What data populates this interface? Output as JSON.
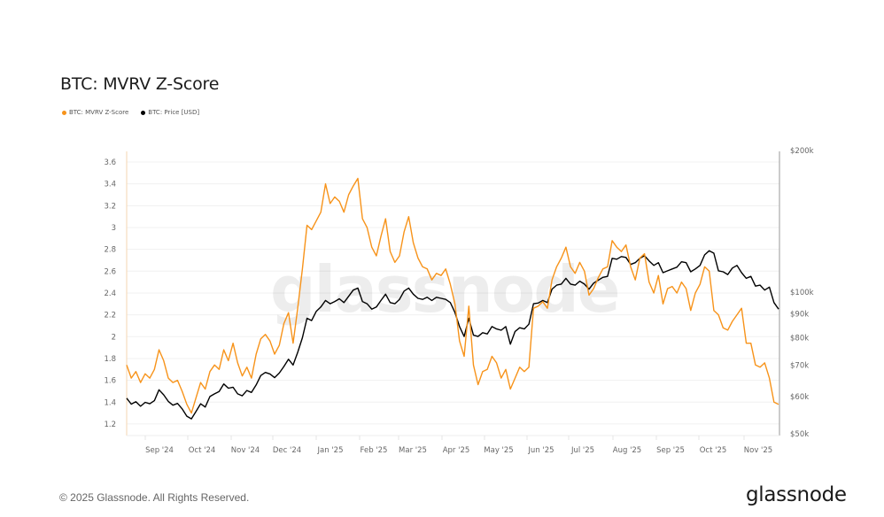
{
  "title": "BTC: MVRV Z-Score",
  "legend": [
    {
      "label": "BTC: MVRV Z-Score",
      "color": "#F7931A"
    },
    {
      "label": "BTC: Price [USD]",
      "color": "#000000"
    }
  ],
  "footer": {
    "copyright": "© 2025 Glassnode. All Rights Reserved.",
    "logo": "glassnode"
  },
  "watermark": "glassnode",
  "chart_data": {
    "type": "line",
    "title": "BTC: MVRV Z-Score",
    "xlabel": "",
    "ylabel_left": "MVRV Z-Score",
    "ylabel_right": "Price [USD]",
    "left_axis": {
      "ticks": [
        "1.2",
        "1.4",
        "1.6",
        "1.8",
        "2",
        "2.2",
        "2.4",
        "2.6",
        "2.8",
        "3",
        "3.2",
        "3.4",
        "3.6"
      ],
      "range": [
        1.15,
        3.7
      ]
    },
    "right_axis": {
      "scale": "log",
      "ticks": [
        "$50k",
        "$60k",
        "$70k",
        "$80k",
        "$90k",
        "$100k",
        "$200k"
      ],
      "range": [
        50000,
        200000
      ]
    },
    "x_ticks": [
      "Sep '24",
      "Oct '24",
      "Nov '24",
      "Dec '24",
      "Jan '25",
      "Feb '25",
      "Mar '25",
      "Apr '25",
      "May '25",
      "Jun '25",
      "Jul '25",
      "Aug '25",
      "Sep '25",
      "Oct '25",
      "Nov '25"
    ],
    "grid": true,
    "legend_position": "top-left",
    "series": [
      {
        "name": "BTC: MVRV Z-Score",
        "color": "#F7931A",
        "axis": "left",
        "values": [
          1.74,
          1.62,
          1.68,
          1.58,
          1.66,
          1.62,
          1.7,
          1.88,
          1.78,
          1.62,
          1.58,
          1.6,
          1.5,
          1.38,
          1.3,
          1.44,
          1.58,
          1.52,
          1.68,
          1.74,
          1.7,
          1.88,
          1.78,
          1.94,
          1.76,
          1.64,
          1.72,
          1.62,
          1.84,
          1.98,
          2.02,
          1.96,
          1.84,
          1.92,
          2.12,
          2.22,
          1.94,
          2.26,
          2.62,
          3.02,
          2.98,
          3.06,
          3.14,
          3.4,
          3.22,
          3.28,
          3.24,
          3.14,
          3.3,
          3.38,
          3.45,
          3.08,
          3.0,
          2.82,
          2.74,
          2.92,
          3.08,
          2.78,
          2.68,
          2.74,
          2.96,
          3.1,
          2.86,
          2.72,
          2.64,
          2.62,
          2.52,
          2.58,
          2.56,
          2.62,
          2.48,
          2.3,
          1.96,
          1.82,
          2.28,
          1.74,
          1.56,
          1.68,
          1.7,
          1.82,
          1.76,
          1.62,
          1.7,
          1.52,
          1.62,
          1.72,
          1.68,
          1.72,
          2.26,
          2.28,
          2.32,
          2.26,
          2.52,
          2.64,
          2.72,
          2.82,
          2.64,
          2.58,
          2.68,
          2.6,
          2.38,
          2.44,
          2.54,
          2.62,
          2.64,
          2.88,
          2.82,
          2.78,
          2.84,
          2.64,
          2.52,
          2.72,
          2.76,
          2.5,
          2.4,
          2.56,
          2.3,
          2.44,
          2.46,
          2.4,
          2.5,
          2.44,
          2.24,
          2.4,
          2.48,
          2.64,
          2.6,
          2.24,
          2.2,
          2.08,
          2.06,
          2.14,
          2.2,
          2.26,
          1.94,
          1.94,
          1.74,
          1.72,
          1.76,
          1.62,
          1.4,
          1.38
        ]
      },
      {
        "name": "BTC: Price [USD]",
        "color": "#000000",
        "axis": "right",
        "values": [
          59500,
          57800,
          58500,
          57200,
          58300,
          57900,
          58800,
          62000,
          60500,
          58600,
          57500,
          58000,
          56500,
          54500,
          53800,
          55800,
          57900,
          57000,
          60000,
          60800,
          61500,
          63800,
          62500,
          62800,
          60800,
          60200,
          61800,
          61200,
          63500,
          66500,
          67500,
          67000,
          65800,
          67300,
          69500,
          72000,
          70000,
          74500,
          80000,
          88000,
          87000,
          91000,
          93000,
          96000,
          94500,
          95500,
          96800,
          95000,
          98000,
          101000,
          102000,
          95500,
          94500,
          92000,
          93000,
          96000,
          99000,
          95000,
          94500,
          96500,
          100500,
          102000,
          99000,
          97000,
          96500,
          97500,
          96000,
          97500,
          97000,
          96500,
          95000,
          90500,
          84500,
          80500,
          88000,
          81000,
          80500,
          82000,
          81500,
          84500,
          83500,
          83000,
          84500,
          77500,
          82500,
          84000,
          83500,
          85500,
          94500,
          94800,
          96000,
          95000,
          101500,
          103500,
          104000,
          107000,
          104000,
          103500,
          105500,
          104000,
          101500,
          104500,
          106000,
          107500,
          108000,
          118000,
          117500,
          119000,
          118500,
          114500,
          115500,
          118000,
          119500,
          116500,
          114000,
          115500,
          110000,
          111000,
          112000,
          113000,
          116000,
          115500,
          110500,
          112000,
          114000,
          120000,
          122500,
          121000,
          111000,
          110500,
          109000,
          112500,
          114000,
          110000,
          107000,
          108000,
          103000,
          103500,
          101000,
          102500,
          95000,
          92000
        ]
      }
    ]
  }
}
